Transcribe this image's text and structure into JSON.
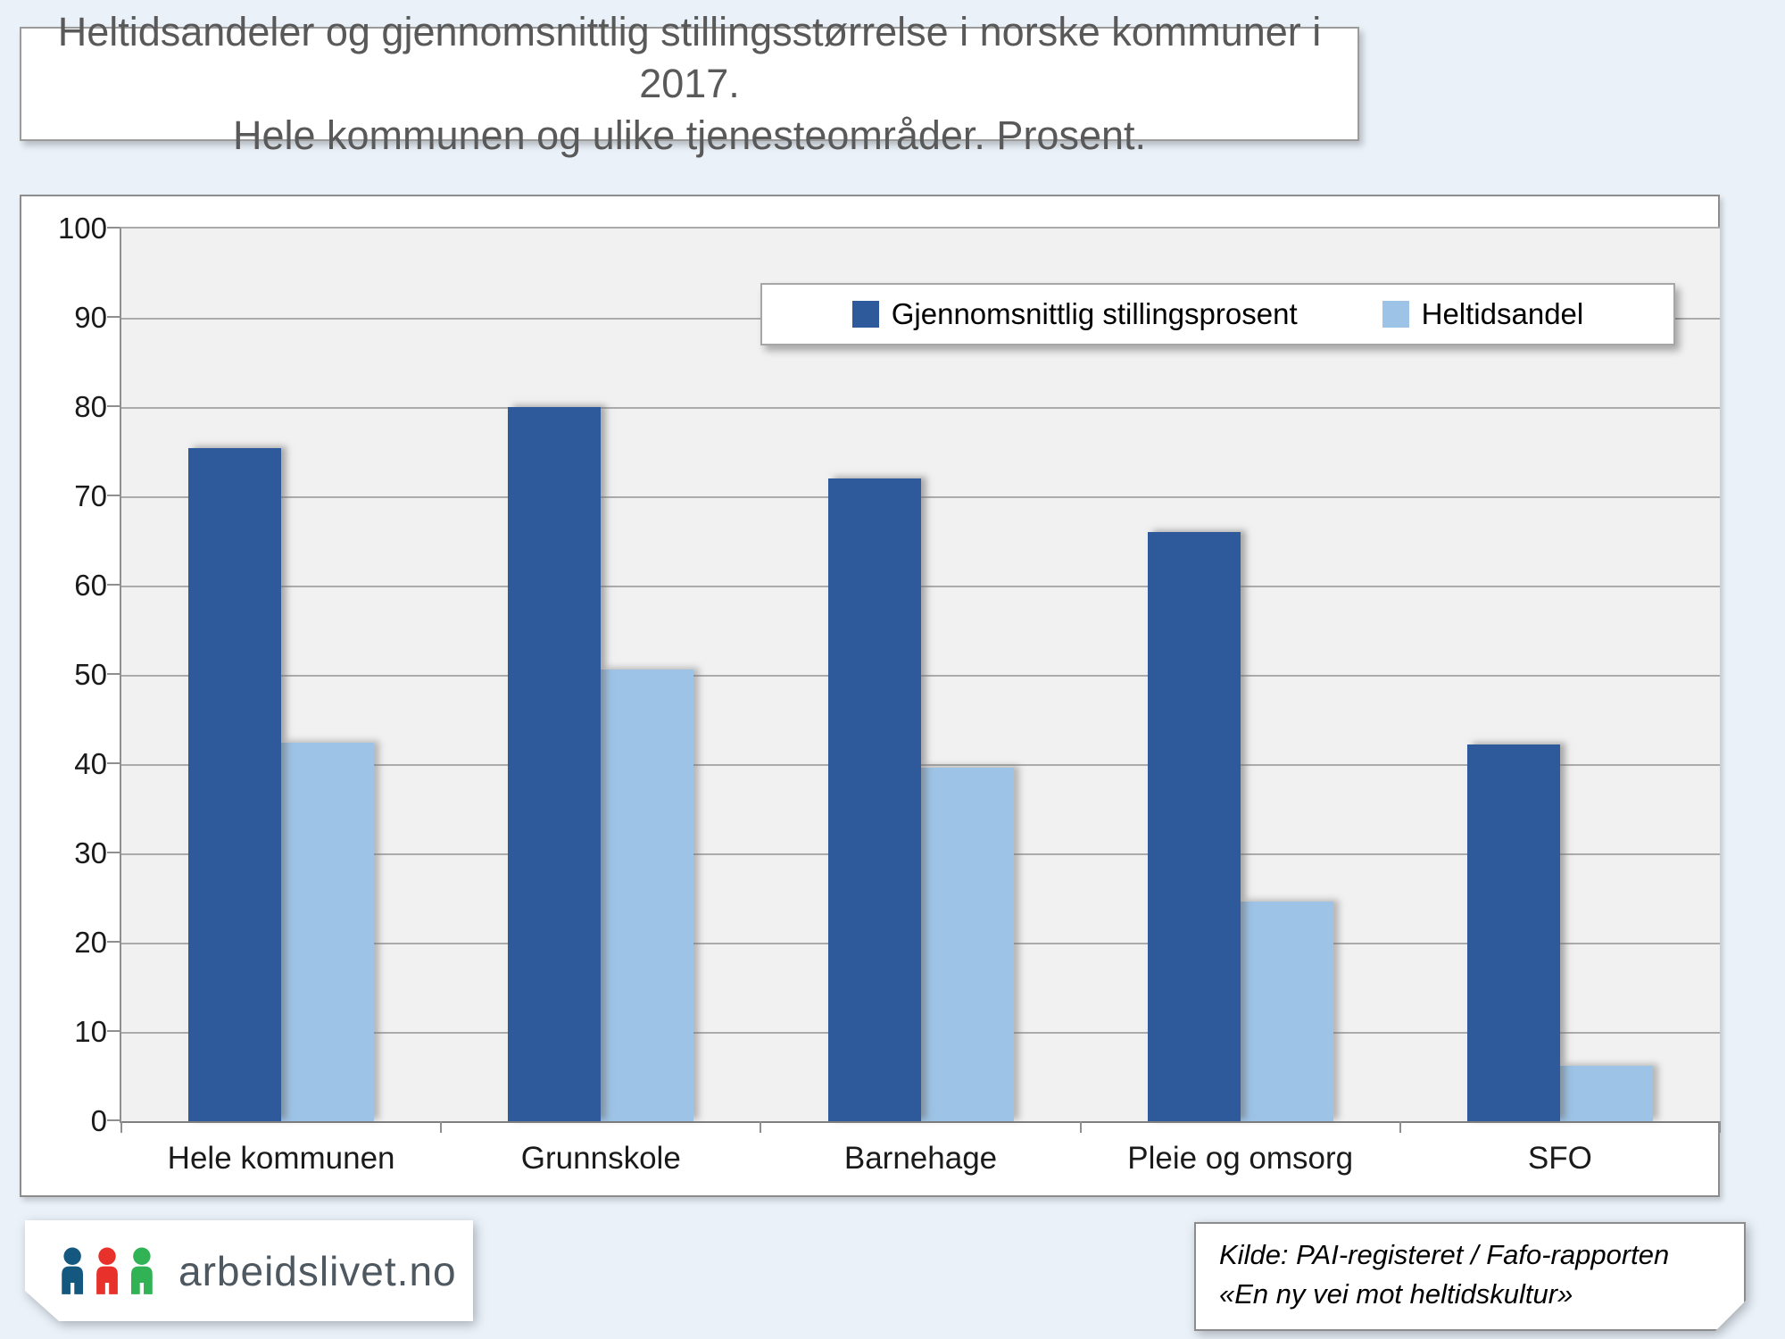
{
  "page": {
    "background_color": "#EAF1F9"
  },
  "title": {
    "line1": "Heltidsandeler og gjennomsnittlig stillingsstørrelse i norske kommuner i 2017.",
    "line2": "Hele kommunen og ulike tjenesteområder. Prosent."
  },
  "chart_data": {
    "type": "bar",
    "categories": [
      "Hele kommunen",
      "Grunnskole",
      "Barnehage",
      "Pleie og omsorg",
      "SFO"
    ],
    "series": [
      {
        "name": "Gjennomsnittlig stillingsprosent",
        "color": "#2E5A9C",
        "values": [
          75.4,
          80,
          72,
          66,
          42.2
        ]
      },
      {
        "name": "Heltidsandel",
        "color": "#9DC3E6",
        "values": [
          42.4,
          50.6,
          39.6,
          24.6,
          6.2
        ]
      }
    ],
    "ylim": [
      0,
      100
    ],
    "yticks": [
      0,
      10,
      20,
      30,
      40,
      50,
      60,
      70,
      80,
      90,
      100
    ],
    "grid": true,
    "legend_position": "top-right-inside",
    "plot_background": "#F1F1F1",
    "gridline_color": "#ABABAB"
  },
  "footer": {
    "logo_text": "arbeidslivet.no",
    "logo_icon": "three-people-icon",
    "logo_icon_colors": [
      "#14587F",
      "#E8312B",
      "#31B355"
    ],
    "source_line1": "Kilde: PAI-registeret / Fafo-rapporten",
    "source_line2": "«En ny vei mot heltidskultur»"
  }
}
